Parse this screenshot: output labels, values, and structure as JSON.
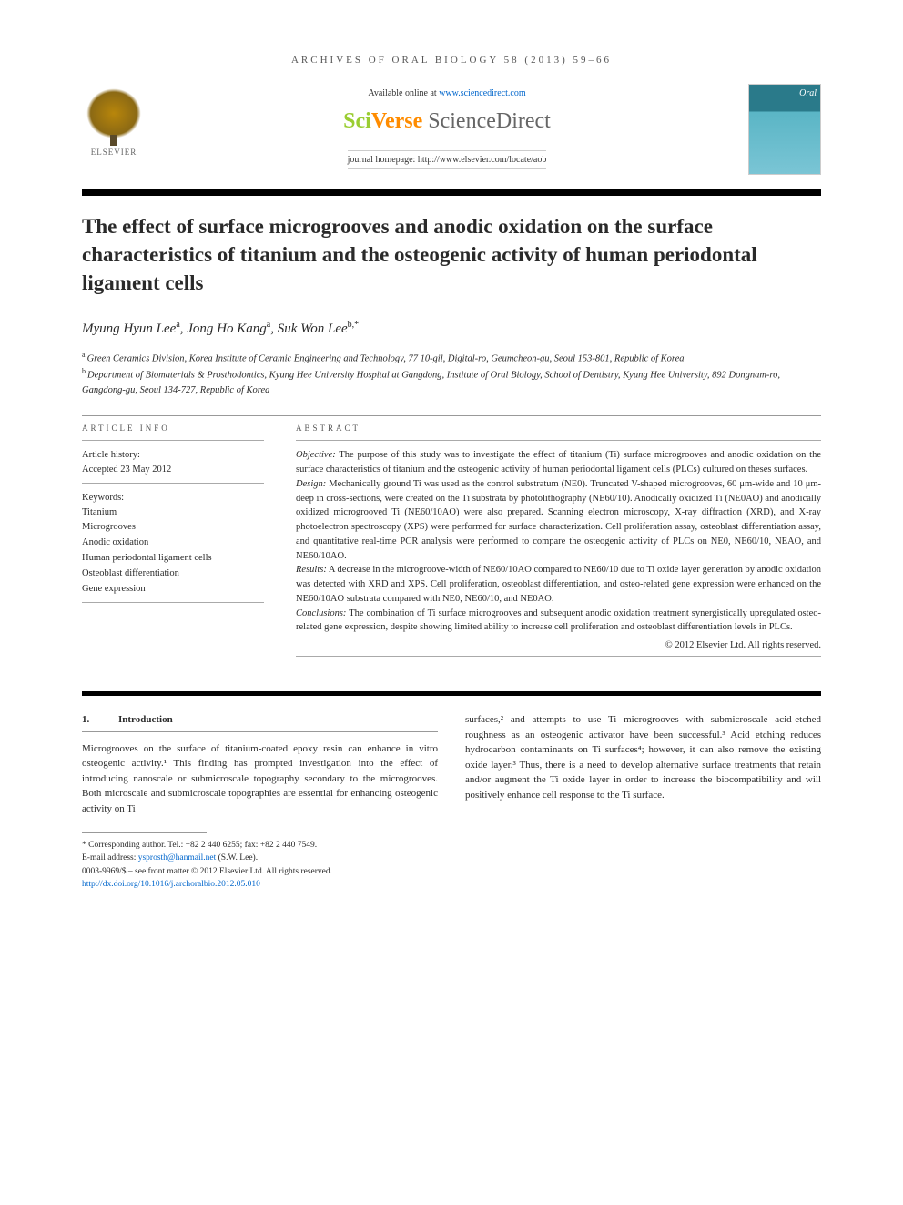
{
  "journal_ref": "ARCHIVES OF ORAL BIOLOGY 58 (2013) 59–66",
  "header": {
    "elsevier": "ELSEVIER",
    "available": "Available online at ",
    "available_url": "www.sciencedirect.com",
    "sciverse_sci": "Sci",
    "sciverse_verse": "Verse ",
    "sciverse_direct": "ScienceDirect",
    "homepage": "journal homepage: http://www.elsevier.com/locate/aob",
    "cover_title": "Oral"
  },
  "title": "The effect of surface microgrooves and anodic oxidation on the surface characteristics of titanium and the osteogenic activity of human periodontal ligament cells",
  "authors": {
    "a1_name": "Myung Hyun Lee",
    "a1_sup": "a",
    "a2_name": "Jong Ho Kang",
    "a2_sup": "a",
    "a3_name": "Suk Won Lee",
    "a3_sup": "b,",
    "star": "*"
  },
  "affiliations": {
    "a_sup": "a",
    "a_text": "Green Ceramics Division, Korea Institute of Ceramic Engineering and Technology, 77 10-gil, Digital-ro, Geumcheon-gu, Seoul 153-801, Republic of Korea",
    "b_sup": "b",
    "b_text": "Department of Biomaterials & Prosthodontics, Kyung Hee University Hospital at Gangdong, Institute of Oral Biology, School of Dentistry, Kyung Hee University, 892 Dongnam-ro, Gangdong-gu, Seoul 134-727, Republic of Korea"
  },
  "article_info": {
    "heading": "ARTICLE INFO",
    "history_label": "Article history:",
    "history_value": "Accepted 23 May 2012",
    "keywords_label": "Keywords:",
    "keywords": [
      "Titanium",
      "Microgrooves",
      "Anodic oxidation",
      "Human periodontal ligament cells",
      "Osteoblast differentiation",
      "Gene expression"
    ]
  },
  "abstract": {
    "heading": "ABSTRACT",
    "objective_label": "Objective:",
    "objective": "The purpose of this study was to investigate the effect of titanium (Ti) surface microgrooves and anodic oxidation on the surface characteristics of titanium and the osteogenic activity of human periodontal ligament cells (PLCs) cultured on theses surfaces.",
    "design_label": "Design:",
    "design": "Mechanically ground Ti was used as the control substratum (NE0). Truncated V-shaped microgrooves, 60 μm-wide and 10 μm-deep in cross-sections, were created on the Ti substrata by photolithography (NE60/10). Anodically oxidized Ti (NE0AO) and anodically oxidized microgrooved Ti (NE60/10AO) were also prepared. Scanning electron microscopy, X-ray diffraction (XRD), and X-ray photoelectron spectroscopy (XPS) were performed for surface characterization. Cell proliferation assay, osteoblast differentiation assay, and quantitative real-time PCR analysis were performed to compare the osteogenic activity of PLCs on NE0, NE60/10, NEAO, and NE60/10AO.",
    "results_label": "Results:",
    "results": "A decrease in the microgroove-width of NE60/10AO compared to NE60/10 due to Ti oxide layer generation by anodic oxidation was detected with XRD and XPS. Cell proliferation, osteoblast differentiation, and osteo-related gene expression were enhanced on the NE60/10AO substrata compared with NE0, NE60/10, and NE0AO.",
    "conclusions_label": "Conclusions:",
    "conclusions": "The combination of Ti surface microgrooves and subsequent anodic oxidation treatment synergistically upregulated osteo-related gene expression, despite showing limited ability to increase cell proliferation and osteoblast differentiation levels in PLCs.",
    "copyright": "© 2012 Elsevier Ltd. All rights reserved."
  },
  "body": {
    "section_num": "1.",
    "section_title": "Introduction",
    "col1": "Microgrooves on the surface of titanium-coated epoxy resin can enhance in vitro osteogenic activity.¹ This finding has prompted investigation into the effect of introducing nanoscale or submicroscale topography secondary to the microgrooves. Both microscale and submicroscale topographies are essential for enhancing osteogenic activity on Ti",
    "col2": "surfaces,² and attempts to use Ti microgrooves with submicroscale acid-etched roughness as an osteogenic activator have been successful.³ Acid etching reduces hydrocarbon contaminants on Ti surfaces⁴; however, it can also remove the existing oxide layer.³ Thus, there is a need to develop alternative surface treatments that retain and/or augment the Ti oxide layer in order to increase the biocompatibility and will positively enhance cell response to the Ti surface."
  },
  "footnotes": {
    "corresponding": "* Corresponding author. Tel.: +82 2 440 6255; fax: +82 2 440 7549.",
    "email_label": "E-mail address: ",
    "email": "ysprosth@hanmail.net",
    "email_suffix": " (S.W. Lee).",
    "issn": "0003-9969/$ – see front matter © 2012 Elsevier Ltd. All rights reserved.",
    "doi": "http://dx.doi.org/10.1016/j.archoralbio.2012.05.010"
  }
}
